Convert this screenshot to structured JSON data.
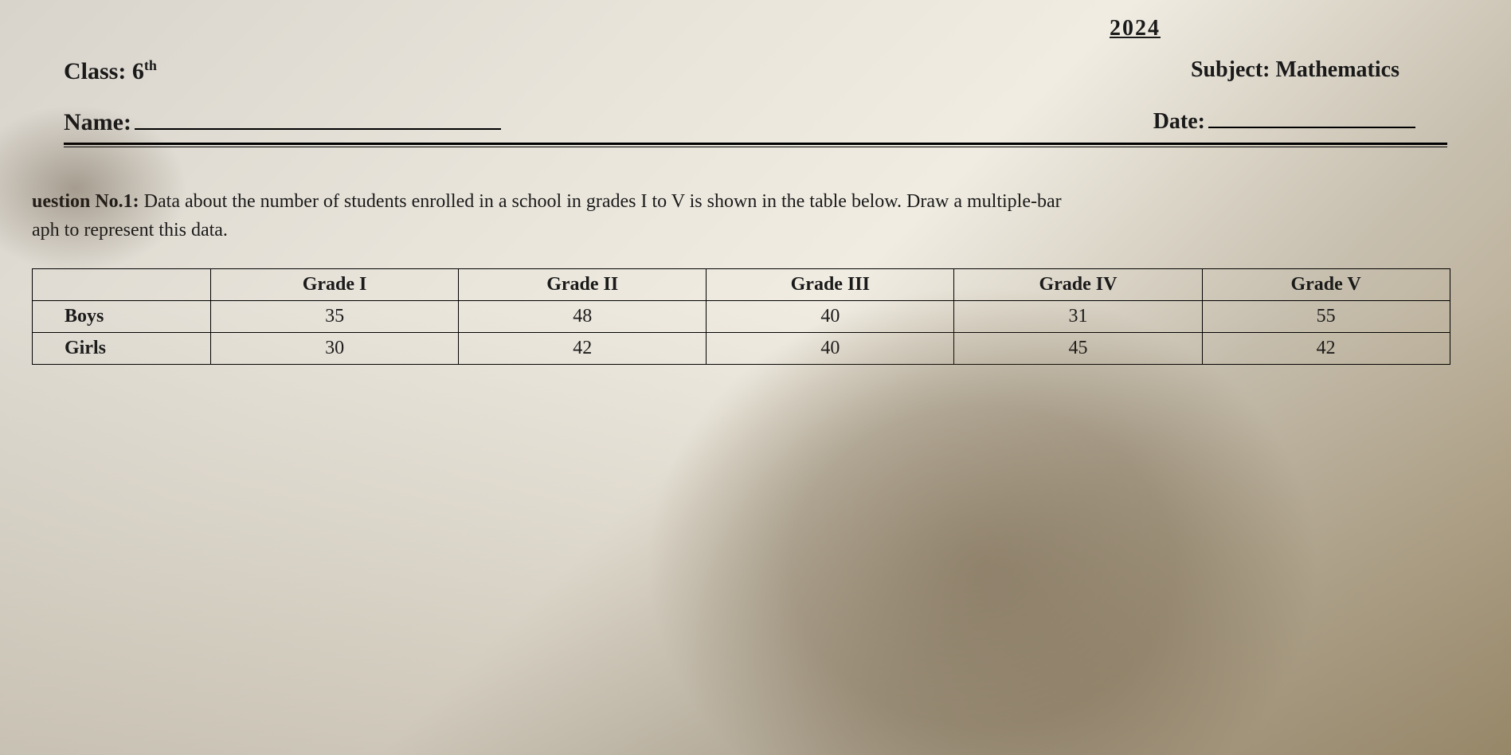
{
  "header": {
    "partial_title": "2024",
    "class_label": "Class:",
    "class_value": "6",
    "class_suffix": "th",
    "subject_label": "Subject:",
    "subject_value": "Mathematics",
    "name_label": "Name:",
    "date_label": "Date:"
  },
  "question": {
    "label": "uestion No.1:",
    "text_line1": "Data about the number of students enrolled in a school in grades I to V is shown in the table below. Draw a multiple-bar",
    "text_line2": "aph to represent this data."
  },
  "table": {
    "columns": [
      "Grade I",
      "Grade II",
      "Grade III",
      "Grade IV",
      "Grade V"
    ],
    "row_labels": [
      "Boys",
      "Girls"
    ],
    "rows": [
      [
        "35",
        "48",
        "40",
        "31",
        "55"
      ],
      [
        "30",
        "42",
        "40",
        "45",
        "42"
      ]
    ],
    "border_color": "#000000",
    "text_color": "#1a1a1a",
    "font_size": 24
  }
}
